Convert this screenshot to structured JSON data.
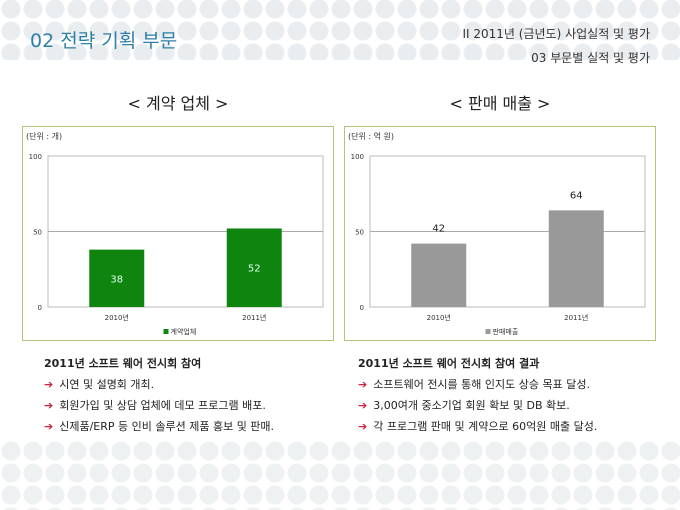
{
  "header": {
    "title": "02  전략 기획 부문",
    "breadcrumb_1": "II  2011년 (금년도) 사업실적 및 평가",
    "breadcrumb_2": "03  부문별 실적 및 평가"
  },
  "chart_data": [
    {
      "type": "bar",
      "title": "< 계약 업체 >",
      "unit": "(단위 : 개)",
      "categories": [
        "2010년",
        "2011년"
      ],
      "series": [
        {
          "name": "계약업체",
          "values": [
            38,
            52
          ],
          "color": "#0f850f"
        }
      ],
      "ylim": [
        0,
        100
      ],
      "yticks": [
        "0",
        "50",
        "100"
      ],
      "grid": true,
      "legend": "bottom",
      "data_labels": [
        "38",
        "52"
      ],
      "label_position": "inside"
    },
    {
      "type": "bar",
      "title": "< 판매 매출 >",
      "unit": "(단위 : 억 원)",
      "categories": [
        "2010년",
        "2011년"
      ],
      "series": [
        {
          "name": "판매매출",
          "values": [
            42,
            64
          ],
          "color": "#999999"
        }
      ],
      "ylim": [
        0,
        100
      ],
      "yticks": [
        "0",
        "50",
        "100"
      ],
      "grid": true,
      "legend": "bottom",
      "data_labels": [
        "42",
        "64"
      ],
      "label_position": "above"
    }
  ],
  "left_list": {
    "heading": "2011년 소프트 웨어 전시회 참여",
    "items": [
      "시연 및 설명회 개최.",
      "회원가입 및 상담 업체에 데모 프로그램 배포.",
      "신제품/ERP 등 인비 솔루션 제품 홍보 및 판매."
    ]
  },
  "right_list": {
    "heading": "2011년 소프트 웨어 전시회 참여 결과",
    "items": [
      "소프트웨어 전시를 통해 인지도 상승 목표 달성.",
      "3,00여개 중소기업 회원 확보 및 DB 확보.",
      "각 프로그램 판매 및 계약으로 60억원 매출 달성."
    ]
  },
  "icons": {
    "bullet": "arrow-right-icon"
  }
}
